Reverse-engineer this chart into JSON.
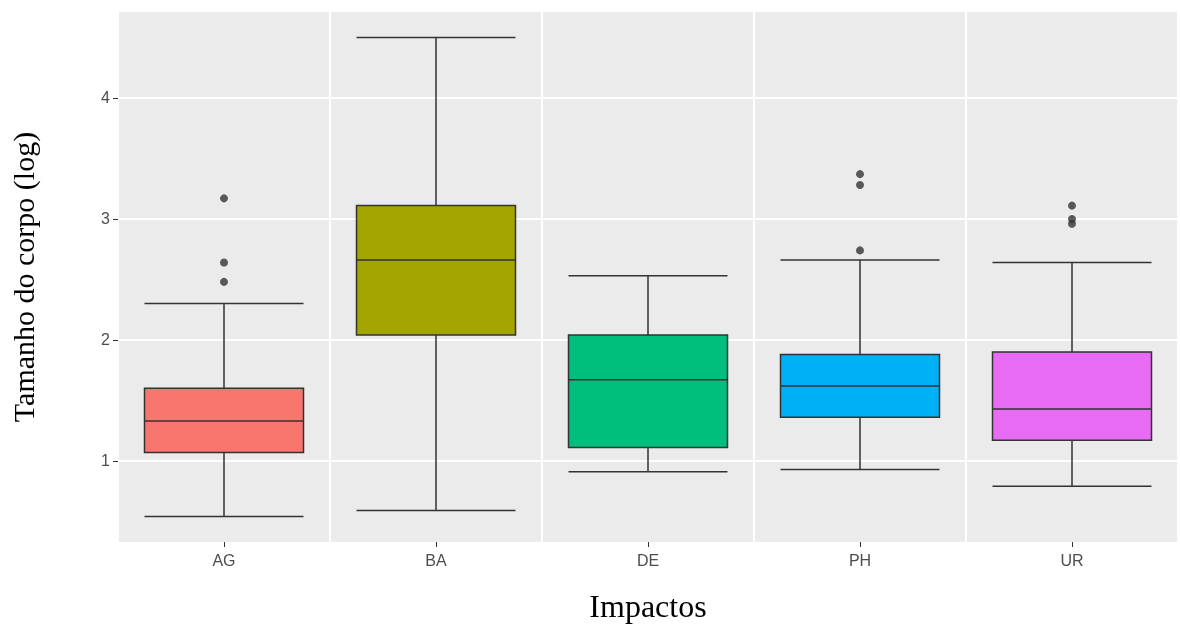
{
  "chart_data": {
    "type": "box",
    "xlabel": "Impactos",
    "ylabel": "Tamanho do corpo (log)",
    "categories": [
      "AG",
      "BA",
      "DE",
      "PH",
      "UR"
    ],
    "colors": [
      "#f8766d",
      "#a3a500",
      "#00bf7d",
      "#00b0f6",
      "#e76bf3"
    ],
    "boxes": [
      {
        "low": 0.54,
        "q1": 1.07,
        "median": 1.33,
        "q3": 1.6,
        "high": 2.3,
        "outliers": [
          2.48,
          2.64,
          3.17
        ]
      },
      {
        "low": 0.59,
        "q1": 2.04,
        "median": 2.66,
        "q3": 3.11,
        "high": 4.5
      },
      {
        "low": 0.91,
        "q1": 1.11,
        "median": 1.67,
        "q3": 2.04,
        "high": 2.53
      },
      {
        "low": 0.93,
        "q1": 1.36,
        "median": 1.62,
        "q3": 1.88,
        "high": 2.66,
        "outliers": [
          2.74,
          3.28,
          3.37
        ]
      },
      {
        "low": 0.79,
        "q1": 1.17,
        "median": 1.43,
        "q3": 1.9,
        "high": 2.64,
        "outliers": [
          2.96,
          3.0,
          3.11
        ]
      }
    ],
    "ylim": [
      0.33,
      4.71
    ],
    "yticks": [
      1,
      2,
      3,
      4
    ],
    "grid": true
  }
}
